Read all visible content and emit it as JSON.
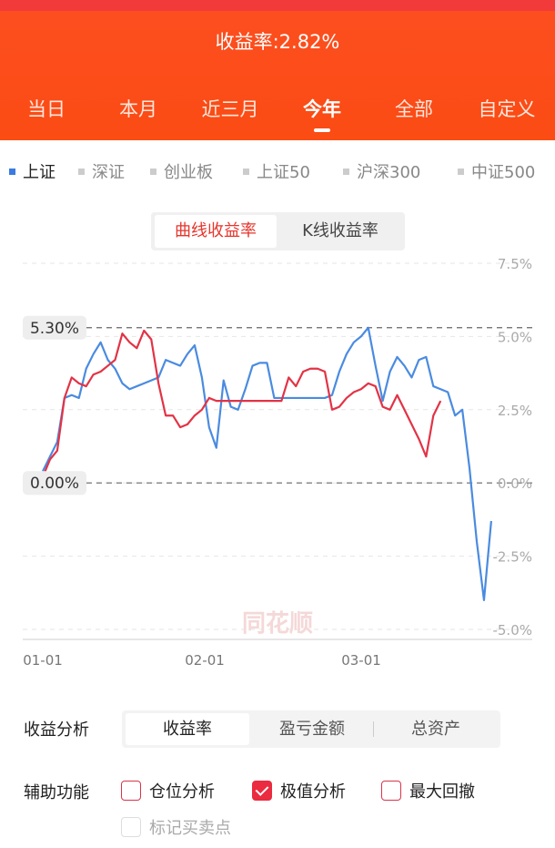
{
  "header": {
    "title": "收益率:2.82%"
  },
  "tabs": [
    {
      "label": "当日"
    },
    {
      "label": "本月"
    },
    {
      "label": "近三月"
    },
    {
      "label": "今年",
      "active": true
    },
    {
      "label": "全部"
    },
    {
      "label": "自定义"
    }
  ],
  "indices": [
    {
      "label": "上证",
      "active": true
    },
    {
      "label": "深证"
    },
    {
      "label": "创业板"
    },
    {
      "label": "上证50"
    },
    {
      "label": "沪深300"
    },
    {
      "label": "中证500"
    }
  ],
  "toggle": {
    "curve": "曲线收益率",
    "k": "K线收益率"
  },
  "chart_data": {
    "type": "line",
    "y_tick_labels": [
      "7.5%",
      "5.0%",
      "2.5%",
      "0.0%",
      "-2.5%",
      "-5.0%"
    ],
    "y_ticks": [
      7.5,
      5.0,
      2.5,
      0.0,
      -2.5,
      -5.0
    ],
    "ylim": [
      -5.0,
      7.5
    ],
    "x_tick_labels": [
      "01-01",
      "02-01",
      "03-01"
    ],
    "max_label": "5.30%",
    "max_value": 5.3,
    "zero_label": "0.00%",
    "zero_value": 0.0,
    "grid": true,
    "watermark": "同花顺",
    "colors": {
      "index": "#4a8be0",
      "portfolio": "#e23346"
    },
    "x_index": [
      0,
      1,
      2,
      3,
      4,
      5,
      6,
      7,
      8,
      9,
      10,
      11,
      12,
      13,
      14,
      15,
      16,
      17,
      18,
      19,
      20,
      21,
      22,
      23,
      24,
      25,
      26,
      27,
      28,
      29,
      30,
      31,
      32,
      33,
      34,
      35,
      36,
      37,
      38,
      39,
      40,
      41,
      42,
      43,
      44,
      45,
      46,
      47,
      48,
      49,
      50,
      51,
      52,
      53,
      54,
      55,
      56,
      57,
      58,
      59,
      60,
      61,
      62,
      63,
      64,
      65,
      66,
      67,
      68,
      69,
      70,
      71,
      72,
      73,
      74,
      75,
      76,
      77
    ],
    "series": [
      {
        "values": [
          0.4,
          0.9,
          1.4,
          2.9,
          3.0,
          2.9,
          3.9,
          4.4,
          4.8,
          4.2,
          3.9,
          3.4,
          3.2,
          3.3,
          3.4,
          3.5,
          3.6,
          4.2,
          4.1,
          4.0,
          4.4,
          4.7,
          3.6,
          1.9,
          1.2,
          3.5,
          2.6,
          2.5,
          3.2,
          4.0,
          4.1,
          4.1,
          2.9,
          2.9,
          2.9,
          2.9,
          2.9,
          2.9,
          2.9,
          2.9,
          3.0,
          3.8,
          4.4,
          4.8,
          5.0,
          5.3,
          4.0,
          2.8,
          3.8,
          4.3,
          4.0,
          3.6,
          4.2,
          4.3,
          3.3,
          3.2,
          3.1,
          2.3,
          2.5,
          0.5,
          -2.0,
          -4.0,
          -1.3
        ],
        "x_index": [
          0,
          1,
          2,
          3,
          4,
          5,
          6,
          7,
          8,
          9,
          10,
          11,
          12,
          13,
          14,
          15,
          16,
          17,
          18,
          19,
          20,
          21,
          22,
          23,
          24,
          25,
          26,
          27,
          28,
          29,
          30,
          31,
          32,
          33,
          34,
          35,
          36,
          37,
          38,
          39,
          40,
          41,
          42,
          43,
          44,
          45,
          46,
          47,
          48,
          49,
          50,
          51,
          52,
          53,
          54,
          55,
          56,
          57,
          58,
          59,
          60,
          61,
          62
        ]
      },
      {
        "values": [
          0.2,
          0.8,
          1.1,
          2.9,
          3.6,
          3.4,
          3.3,
          3.7,
          3.8,
          4.0,
          4.2,
          5.1,
          4.8,
          4.6,
          5.2,
          4.9,
          3.4,
          2.3,
          2.3,
          1.9,
          2.0,
          2.3,
          2.5,
          2.9,
          2.8,
          2.8,
          2.8,
          2.8,
          2.8,
          2.8,
          2.8,
          2.8,
          2.8,
          2.8,
          3.6,
          3.3,
          3.8,
          3.9,
          3.9,
          3.8,
          2.5,
          2.6,
          2.9,
          3.1,
          3.2,
          3.4,
          3.3,
          2.6,
          2.5,
          3.0,
          2.5,
          2.0,
          1.5,
          0.9,
          2.3,
          2.8
        ],
        "x_index": [
          0,
          1,
          2,
          3,
          4,
          5,
          6,
          7,
          8,
          9,
          10,
          11,
          12,
          13,
          14,
          15,
          16,
          17,
          18,
          19,
          20,
          21,
          22,
          23,
          24,
          25,
          26,
          27,
          28,
          29,
          30,
          31,
          32,
          33,
          34,
          35,
          36,
          37,
          38,
          39,
          40,
          41,
          42,
          43,
          44,
          45,
          46,
          47,
          48,
          49,
          50,
          51,
          52,
          53,
          54,
          55
        ]
      }
    ]
  },
  "analysis": {
    "label": "收益分析",
    "options": [
      "收益率",
      "盈亏金额",
      "总资产"
    ],
    "active": 0
  },
  "aux": {
    "label": "辅助功能",
    "items": [
      {
        "label": "仓位分析",
        "checked": false
      },
      {
        "label": "极值分析",
        "checked": true
      },
      {
        "label": "最大回撤",
        "checked": false
      },
      {
        "label": "标记买卖点",
        "checked": false,
        "disabled": true
      }
    ]
  }
}
